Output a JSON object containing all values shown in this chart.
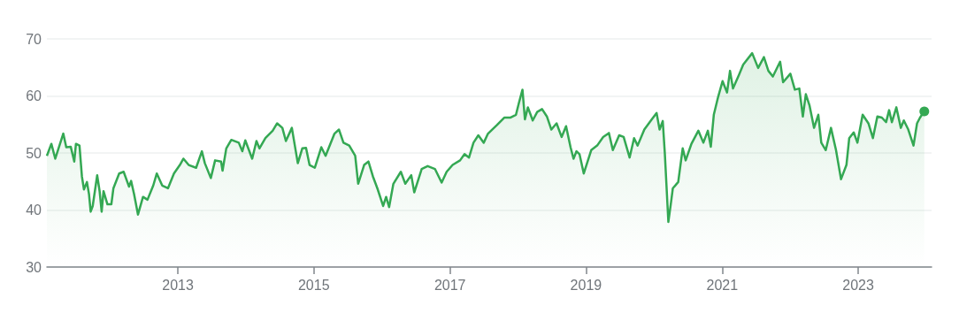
{
  "chart_data": {
    "type": "area",
    "color": "#34a853",
    "marker": "none",
    "grid": "y",
    "x": [
      "2011-01-29",
      "2011-02-22",
      "2011-03-15",
      "2011-04-27",
      "2011-05-13",
      "2011-06-06",
      "2011-06-25",
      "2011-07-04",
      "2011-07-23",
      "2011-08-05",
      "2011-08-16",
      "2011-09-01",
      "2011-09-12",
      "2011-09-21",
      "2011-10-02",
      "2011-10-26",
      "2011-11-08",
      "2011-11-19",
      "2011-11-29",
      "2011-12-20",
      "2012-01-10",
      "2012-01-21",
      "2012-02-21",
      "2012-03-16",
      "2012-04-14",
      "2012-04-25",
      "2012-05-11",
      "2012-06-01",
      "2012-06-28",
      "2012-07-22",
      "2012-08-22",
      "2012-09-10",
      "2012-10-09",
      "2012-11-09",
      "2012-12-11",
      "2013-01-12",
      "2013-01-31",
      "2013-02-28",
      "2013-04-09",
      "2013-05-10",
      "2013-05-26",
      "2013-06-27",
      "2013-07-20",
      "2013-08-21",
      "2013-08-29",
      "2013-09-18",
      "2013-10-15",
      "2013-11-24",
      "2013-12-13",
      "2013-12-29",
      "2014-02-04",
      "2014-02-27",
      "2014-03-15",
      "2014-04-16",
      "2014-05-25",
      "2014-06-18",
      "2014-07-16",
      "2014-08-04",
      "2014-09-05",
      "2014-10-07",
      "2014-10-31",
      "2014-11-20",
      "2014-12-09",
      "2015-01-06",
      "2015-02-10",
      "2015-03-05",
      "2015-04-22",
      "2015-05-16",
      "2015-06-09",
      "2015-07-10",
      "2015-08-11",
      "2015-08-27",
      "2015-09-28",
      "2015-10-21",
      "2015-11-14",
      "2015-12-08",
      "2016-01-08",
      "2016-01-24",
      "2016-02-09",
      "2016-03-03",
      "2016-04-12",
      "2016-05-06",
      "2016-06-07",
      "2016-06-23",
      "2016-08-02",
      "2016-09-03",
      "2016-10-12",
      "2016-11-17",
      "2016-12-14",
      "2017-01-15",
      "2017-02-24",
      "2017-03-20",
      "2017-04-13",
      "2017-05-07",
      "2017-06-02",
      "2017-07-01",
      "2017-07-24",
      "2017-09-10",
      "2017-10-19",
      "2017-11-20",
      "2017-12-21",
      "2018-01-06",
      "2018-01-25",
      "2018-02-07",
      "2018-02-23",
      "2018-03-21",
      "2018-04-14",
      "2018-05-10",
      "2018-06-05",
      "2018-06-29",
      "2018-07-27",
      "2018-08-23",
      "2018-09-16",
      "2018-10-10",
      "2018-10-26",
      "2018-11-11",
      "2018-11-27",
      "2018-12-20",
      "2019-01-29",
      "2019-03-02",
      "2019-04-03",
      "2019-05-04",
      "2019-05-25",
      "2019-06-28",
      "2019-07-22",
      "2019-08-23",
      "2019-09-16",
      "2019-10-05",
      "2019-11-10",
      "2019-12-20",
      "2020-01-15",
      "2020-01-31",
      "2020-02-17",
      "2020-02-28",
      "2020-03-18",
      "2020-03-31",
      "2020-04-11",
      "2020-05-10",
      "2020-06-03",
      "2020-06-19",
      "2020-07-20",
      "2020-08-26",
      "2020-09-22",
      "2020-10-16",
      "2020-11-01",
      "2020-11-17",
      "2020-12-10",
      "2021-01-03",
      "2021-01-27",
      "2021-02-12",
      "2021-02-28",
      "2021-04-01",
      "2021-04-24",
      "2021-06-11",
      "2021-07-13",
      "2021-08-13",
      "2021-09-06",
      "2021-09-30",
      "2021-11-08",
      "2021-11-24",
      "2022-01-02",
      "2022-01-26",
      "2022-02-19",
      "2022-03-10",
      "2022-03-26",
      "2022-04-15",
      "2022-05-09",
      "2022-06-01",
      "2022-06-17",
      "2022-07-11",
      "2022-08-08",
      "2022-09-04",
      "2022-10-01",
      "2022-10-30",
      "2022-11-14",
      "2022-12-08",
      "2022-12-28",
      "2023-01-25",
      "2023-02-25",
      "2023-03-21",
      "2023-04-14",
      "2023-05-08",
      "2023-05-31",
      "2023-06-16",
      "2023-07-01",
      "2023-07-25",
      "2023-08-18",
      "2023-09-03",
      "2023-09-27",
      "2023-10-25",
      "2023-11-13",
      "2023-11-29",
      "2023-12-22"
    ],
    "values": [
      49.5,
      51.6,
      49.0,
      53.4,
      51.0,
      51.1,
      48.5,
      51.6,
      51.3,
      45.9,
      43.6,
      44.9,
      42.8,
      39.7,
      40.7,
      46.1,
      43.3,
      39.7,
      43.3,
      41.0,
      41.0,
      43.8,
      46.4,
      46.7,
      44.1,
      45.1,
      42.8,
      39.2,
      42.3,
      41.8,
      44.3,
      46.4,
      44.3,
      43.8,
      46.4,
      47.9,
      49.0,
      47.9,
      47.4,
      50.3,
      48.2,
      45.6,
      48.7,
      48.5,
      46.9,
      50.8,
      52.3,
      51.8,
      50.3,
      52.2,
      49.0,
      52.1,
      50.8,
      52.6,
      53.9,
      55.2,
      54.4,
      52.1,
      54.4,
      48.2,
      50.8,
      50.9,
      47.9,
      47.4,
      51.0,
      49.5,
      53.4,
      54.1,
      51.8,
      51.3,
      49.5,
      44.6,
      47.9,
      48.5,
      45.9,
      43.8,
      40.7,
      42.3,
      40.5,
      44.6,
      46.7,
      44.6,
      46.1,
      43.1,
      47.2,
      47.7,
      47.2,
      44.8,
      46.7,
      47.9,
      48.7,
      49.8,
      49.2,
      51.8,
      53.1,
      51.8,
      53.4,
      54.9,
      56.2,
      56.2,
      56.7,
      58.8,
      61.1,
      55.9,
      58.0,
      55.7,
      57.2,
      57.7,
      56.4,
      54.1,
      55.2,
      52.8,
      54.7,
      51.0,
      49.0,
      50.3,
      49.8,
      46.4,
      50.5,
      51.3,
      52.8,
      53.5,
      50.5,
      53.1,
      52.8,
      49.2,
      52.6,
      51.3,
      54.1,
      55.9,
      57.0,
      54.1,
      55.6,
      50.0,
      37.9,
      41.0,
      43.8,
      44.9,
      50.8,
      48.7,
      51.6,
      53.9,
      51.8,
      53.9,
      51.1,
      56.7,
      59.8,
      62.6,
      60.6,
      64.4,
      61.3,
      63.7,
      65.5,
      67.5,
      64.9,
      66.8,
      64.4,
      63.4,
      66.0,
      62.4,
      63.9,
      61.1,
      61.3,
      56.4,
      60.3,
      58.3,
      54.4,
      56.7,
      51.8,
      50.5,
      54.4,
      50.5,
      45.4,
      47.9,
      52.6,
      53.6,
      51.8,
      56.7,
      55.2,
      52.6,
      56.4,
      56.2,
      55.4,
      57.5,
      55.4,
      58.0,
      54.4,
      55.7,
      54.1,
      51.3,
      55.2,
      56.2,
      57.3
    ],
    "xlim": [
      "2011-01-29",
      "2024-01-30"
    ],
    "xticks": [
      "2013",
      "2015",
      "2017",
      "2019",
      "2021",
      "2023"
    ],
    "ylim": [
      30,
      70
    ],
    "yticks": [
      30,
      40,
      50,
      60,
      70
    ]
  }
}
